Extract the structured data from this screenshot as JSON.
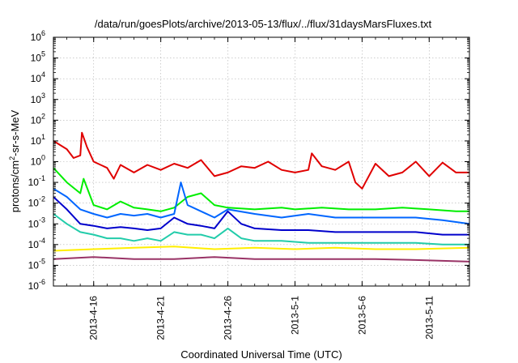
{
  "chart_data": {
    "type": "line",
    "title": "/data/run/goesPlots/archive/2013-05-13/flux/../flux/31daysMarsFluxes.txt",
    "xlabel": "Coordinated Universal Time (UTC)",
    "ylabel": "protons/cm2-sr-s-MeV",
    "ylabel_parts": {
      "pre": "protons/cm",
      "sup": "2",
      "post": "-sr-s-MeV"
    },
    "x_start": "2013-04-13",
    "x_end": "2013-05-14",
    "x_ticks": [
      {
        "date": "2013-04-16",
        "label": "2013-4-16"
      },
      {
        "date": "2013-04-21",
        "label": "2013-4-21"
      },
      {
        "date": "2013-04-26",
        "label": "2013-4-26"
      },
      {
        "date": "2013-05-01",
        "label": "2013-5-1"
      },
      {
        "date": "2013-05-06",
        "label": "2013-5-6"
      },
      {
        "date": "2013-05-11",
        "label": "2013-5-11"
      }
    ],
    "y_scale": "log",
    "ylim": [
      1e-06,
      1000000.0
    ],
    "y_ticks": [
      {
        "value": 1e-06,
        "base": "10",
        "exp": "-6"
      },
      {
        "value": 1e-05,
        "base": "10",
        "exp": "-5"
      },
      {
        "value": 0.0001,
        "base": "10",
        "exp": "-4"
      },
      {
        "value": 0.001,
        "base": "10",
        "exp": "-3"
      },
      {
        "value": 0.01,
        "base": "10",
        "exp": "-2"
      },
      {
        "value": 0.1,
        "base": "10",
        "exp": "-1"
      },
      {
        "value": 1,
        "base": "10",
        "exp": "0"
      },
      {
        "value": 10.0,
        "base": "10",
        "exp": "1"
      },
      {
        "value": 100.0,
        "base": "10",
        "exp": "2"
      },
      {
        "value": 1000.0,
        "base": "10",
        "exp": "3"
      },
      {
        "value": 10000.0,
        "base": "10",
        "exp": "4"
      },
      {
        "value": 100000.0,
        "base": "10",
        "exp": "5"
      },
      {
        "value": 1000000.0,
        "base": "10",
        "exp": "6"
      }
    ],
    "grid": true,
    "series": [
      {
        "color": "#e00000",
        "x": [
          "2013-04-13",
          "2013-04-14",
          "2013-04-14T12:00",
          "2013-04-15",
          "2013-04-15T03:00",
          "2013-04-15T12:00",
          "2013-04-16",
          "2013-04-17",
          "2013-04-17T12:00",
          "2013-04-18",
          "2013-04-19",
          "2013-04-20",
          "2013-04-21",
          "2013-04-22",
          "2013-04-23",
          "2013-04-24",
          "2013-04-25",
          "2013-04-26",
          "2013-04-27",
          "2013-04-28",
          "2013-04-29",
          "2013-04-30",
          "2013-05-01",
          "2013-05-02",
          "2013-05-02T06:00",
          "2013-05-03",
          "2013-05-04",
          "2013-05-05",
          "2013-05-05T12:00",
          "2013-05-06",
          "2013-05-07",
          "2013-05-08",
          "2013-05-09",
          "2013-05-10",
          "2013-05-11",
          "2013-05-12",
          "2013-05-13",
          "2013-05-14"
        ],
        "values": [
          10,
          4,
          1.5,
          2,
          25,
          5,
          1,
          0.5,
          0.15,
          0.7,
          0.3,
          0.7,
          0.4,
          0.8,
          0.5,
          1.2,
          0.2,
          0.3,
          0.6,
          0.5,
          1.0,
          0.4,
          0.3,
          0.4,
          2.5,
          0.6,
          0.4,
          1.0,
          0.1,
          0.05,
          0.8,
          0.2,
          0.3,
          1.0,
          0.2,
          0.9,
          0.3,
          0.3
        ]
      },
      {
        "color": "#00ee00",
        "x": [
          "2013-04-13",
          "2013-04-14",
          "2013-04-15",
          "2013-04-15T06:00",
          "2013-04-16",
          "2013-04-17",
          "2013-04-18",
          "2013-04-19",
          "2013-04-20",
          "2013-04-21",
          "2013-04-22",
          "2013-04-23",
          "2013-04-24",
          "2013-04-25",
          "2013-04-26",
          "2013-04-28",
          "2013-04-30",
          "2013-05-01",
          "2013-05-03",
          "2013-05-05",
          "2013-05-07",
          "2013-05-09",
          "2013-05-11",
          "2013-05-13",
          "2013-05-14"
        ],
        "values": [
          0.5,
          0.1,
          0.03,
          0.15,
          0.008,
          0.005,
          0.012,
          0.006,
          0.005,
          0.004,
          0.006,
          0.02,
          0.03,
          0.008,
          0.006,
          0.005,
          0.006,
          0.005,
          0.006,
          0.005,
          0.005,
          0.006,
          0.005,
          0.004,
          0.004
        ]
      },
      {
        "color": "#0066ff",
        "x": [
          "2013-04-13",
          "2013-04-14",
          "2013-04-15",
          "2013-04-16",
          "2013-04-17",
          "2013-04-18",
          "2013-04-19",
          "2013-04-20",
          "2013-04-21",
          "2013-04-22",
          "2013-04-22T12:00",
          "2013-04-23",
          "2013-04-24",
          "2013-04-25",
          "2013-04-26",
          "2013-04-28",
          "2013-04-30",
          "2013-05-02",
          "2013-05-04",
          "2013-05-06",
          "2013-05-08",
          "2013-05-10",
          "2013-05-12",
          "2013-05-14"
        ],
        "values": [
          0.05,
          0.02,
          0.005,
          0.003,
          0.002,
          0.003,
          0.0025,
          0.003,
          0.002,
          0.003,
          0.1,
          0.008,
          0.004,
          0.002,
          0.005,
          0.003,
          0.002,
          0.003,
          0.002,
          0.002,
          0.002,
          0.002,
          0.0015,
          0.001
        ]
      },
      {
        "color": "#0000cc",
        "x": [
          "2013-04-13",
          "2013-04-14",
          "2013-04-15",
          "2013-04-16",
          "2013-04-17",
          "2013-04-18",
          "2013-04-19",
          "2013-04-20",
          "2013-04-21",
          "2013-04-22",
          "2013-04-23",
          "2013-04-24",
          "2013-04-25",
          "2013-04-26",
          "2013-04-27",
          "2013-04-28",
          "2013-04-30",
          "2013-05-02",
          "2013-05-04",
          "2013-05-06",
          "2013-05-08",
          "2013-05-10",
          "2013-05-12",
          "2013-05-14"
        ],
        "values": [
          0.02,
          0.005,
          0.001,
          0.0008,
          0.0006,
          0.0007,
          0.0006,
          0.0005,
          0.0006,
          0.002,
          0.001,
          0.0008,
          0.0006,
          0.004,
          0.001,
          0.0006,
          0.0005,
          0.0005,
          0.0004,
          0.0004,
          0.0004,
          0.0004,
          0.0003,
          0.0003
        ]
      },
      {
        "color": "#22ccaa",
        "x": [
          "2013-04-13",
          "2013-04-14",
          "2013-04-15",
          "2013-04-16",
          "2013-04-17",
          "2013-04-18",
          "2013-04-19",
          "2013-04-20",
          "2013-04-21",
          "2013-04-22",
          "2013-04-23",
          "2013-04-24",
          "2013-04-25",
          "2013-04-26",
          "2013-04-27",
          "2013-04-28",
          "2013-04-30",
          "2013-05-02",
          "2013-05-04",
          "2013-05-06",
          "2013-05-08",
          "2013-05-10",
          "2013-05-12",
          "2013-05-14"
        ],
        "values": [
          0.003,
          0.001,
          0.0004,
          0.0003,
          0.0002,
          0.0002,
          0.00015,
          0.0002,
          0.00015,
          0.0004,
          0.0003,
          0.0003,
          0.0002,
          0.0006,
          0.0002,
          0.00015,
          0.00015,
          0.00012,
          0.00012,
          0.00012,
          0.00012,
          0.00012,
          0.0001,
          0.0001
        ]
      },
      {
        "color": "#ffee00",
        "x": [
          "2013-04-13",
          "2013-04-16",
          "2013-04-19",
          "2013-04-22",
          "2013-04-25",
          "2013-04-28",
          "2013-05-01",
          "2013-05-04",
          "2013-05-07",
          "2013-05-10",
          "2013-05-14"
        ],
        "values": [
          5e-05,
          6e-05,
          7e-05,
          8e-05,
          6e-05,
          7e-05,
          6e-05,
          7e-05,
          6e-05,
          6e-05,
          7e-05
        ]
      },
      {
        "color": "#993366",
        "x": [
          "2013-04-13",
          "2013-04-16",
          "2013-04-19",
          "2013-04-22",
          "2013-04-25",
          "2013-04-28",
          "2013-05-01",
          "2013-05-04",
          "2013-05-07",
          "2013-05-10",
          "2013-05-14"
        ],
        "values": [
          2e-05,
          2.5e-05,
          2e-05,
          2e-05,
          2.5e-05,
          2e-05,
          2e-05,
          2e-05,
          2e-05,
          1.8e-05,
          1.5e-05
        ]
      }
    ]
  }
}
